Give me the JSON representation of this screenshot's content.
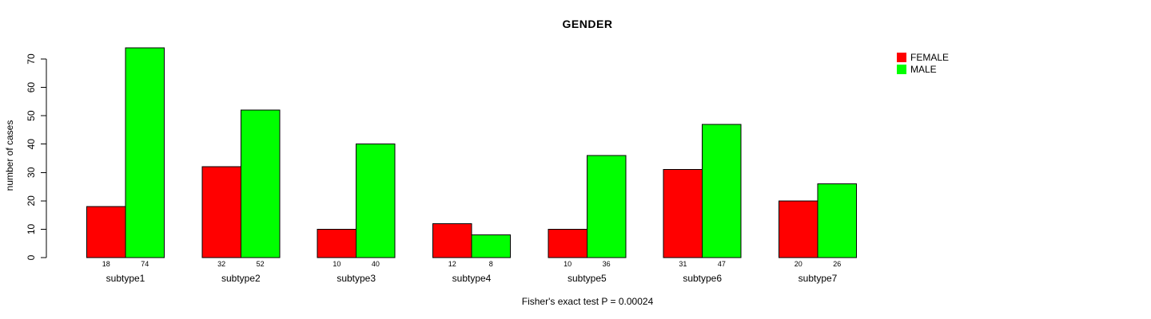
{
  "chart_data": {
    "type": "bar",
    "title": "GENDER",
    "xlabel": "",
    "ylabel": "number of cases",
    "caption": "Fisher's exact test P = 0.00024",
    "categories": [
      "subtype1",
      "subtype2",
      "subtype3",
      "subtype4",
      "subtype5",
      "subtype6",
      "subtype7"
    ],
    "series": [
      {
        "name": "FEMALE",
        "color": "#ff0000",
        "values": [
          18,
          32,
          10,
          12,
          10,
          31,
          20
        ]
      },
      {
        "name": "MALE",
        "color": "#00ff00",
        "values": [
          74,
          52,
          40,
          8,
          36,
          47,
          26
        ]
      }
    ],
    "ylim": [
      0,
      70
    ],
    "yticks": [
      0,
      10,
      20,
      30,
      40,
      50,
      60,
      70
    ],
    "bar_value_labels": true,
    "grid": false,
    "legend_position": "top-right",
    "axis_color": "#000000",
    "bar_border_color": "#000000",
    "background_color": "#ffffff"
  }
}
